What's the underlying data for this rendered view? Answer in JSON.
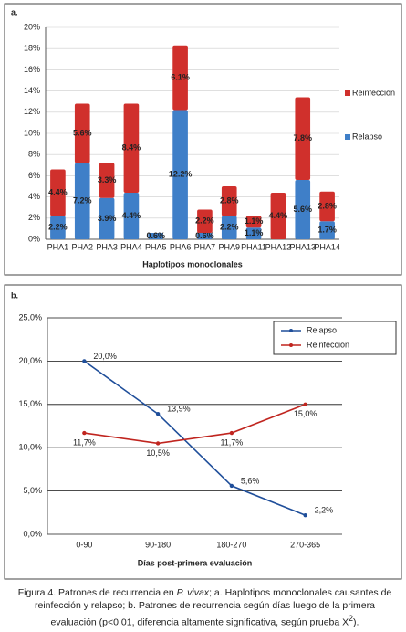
{
  "chart_data": [
    {
      "type": "bar",
      "panel_label": "a.",
      "x_label": "Haplotipos monoclonales",
      "categories": [
        "PHA1",
        "PHA2",
        "PHA3",
        "PHA4",
        "PHA5",
        "PHA6",
        "PHA7",
        "PHA9",
        "PHA11",
        "PHA12",
        "PHA13",
        "PHA14"
      ],
      "series": [
        {
          "name": "Relapso",
          "color": "#3f7fc8",
          "values": [
            2.2,
            7.2,
            3.9,
            4.4,
            0.6,
            12.2,
            0.6,
            2.2,
            1.1,
            null,
            5.6,
            1.7
          ],
          "value_labels": [
            "2.2%",
            "7.2%",
            "3.9%",
            "4.4%",
            "0.6%",
            "12.2%",
            "0.6%",
            "2.2%",
            "1.1%",
            null,
            "5.6%",
            "1.7%"
          ]
        },
        {
          "name": "Reinfección",
          "color": "#d0302c",
          "values": [
            4.4,
            5.6,
            3.3,
            8.4,
            null,
            6.1,
            2.2,
            2.8,
            1.1,
            4.4,
            7.8,
            2.8
          ],
          "value_labels": [
            "4.4%",
            "5.6%",
            "3.3%",
            "8.4%",
            null,
            "6.1%",
            "2.2%",
            "2.8%",
            "1.1%",
            "4.4%",
            "7.8%",
            "2.8%"
          ]
        }
      ],
      "ylim": [
        0,
        20
      ],
      "yticks": [
        {
          "value": 0,
          "label": "0%"
        },
        {
          "value": 2,
          "label": "2%"
        },
        {
          "value": 4,
          "label": "4%"
        },
        {
          "value": 6,
          "label": "6%"
        },
        {
          "value": 8,
          "label": "8%"
        },
        {
          "value": 10,
          "label": "10%"
        },
        {
          "value": 12,
          "label": "12%"
        },
        {
          "value": 14,
          "label": "14%"
        },
        {
          "value": 16,
          "label": "16%"
        },
        {
          "value": 18,
          "label": "18%"
        },
        {
          "value": 20,
          "label": "20%"
        }
      ],
      "grid": true
    },
    {
      "type": "line",
      "panel_label": "b.",
      "x_label": "Días post-primera evaluación",
      "categories": [
        "0-90",
        "90-180",
        "180-270",
        "270-365"
      ],
      "series": [
        {
          "name": "Relapso",
          "color": "#1f4e9a",
          "values": [
            20.0,
            13.9,
            5.6,
            2.2
          ],
          "value_labels": [
            "20,0%",
            "13,9%",
            "5,6%",
            "2,2%"
          ]
        },
        {
          "name": "Reinfección",
          "color": "#c0251f",
          "values": [
            11.7,
            10.5,
            11.7,
            15.0
          ],
          "value_labels": [
            "11,7%",
            "10,5%",
            "11,7%",
            "15,0%"
          ]
        }
      ],
      "ylim": [
        0,
        25
      ],
      "yticks": [
        {
          "value": 0,
          "label": "0,0%"
        },
        {
          "value": 5,
          "label": "5,0%"
        },
        {
          "value": 10,
          "label": "10,0%"
        },
        {
          "value": 15,
          "label": "15,0%"
        },
        {
          "value": 20,
          "label": "20,0%"
        },
        {
          "value": 25,
          "label": "25,0%"
        }
      ],
      "grid": true
    }
  ],
  "caption": [
    "Figura 4. Patrones de recurrencia en ",
    "P. vivax",
    "; a. Haplotipos monoclonales causantes de reinfección y relapso; b. Patrones de recurrencia según días luego de la primera evaluación (p<0,01, diferencia altamente significativa, según prueba X",
    "2",
    ")."
  ]
}
